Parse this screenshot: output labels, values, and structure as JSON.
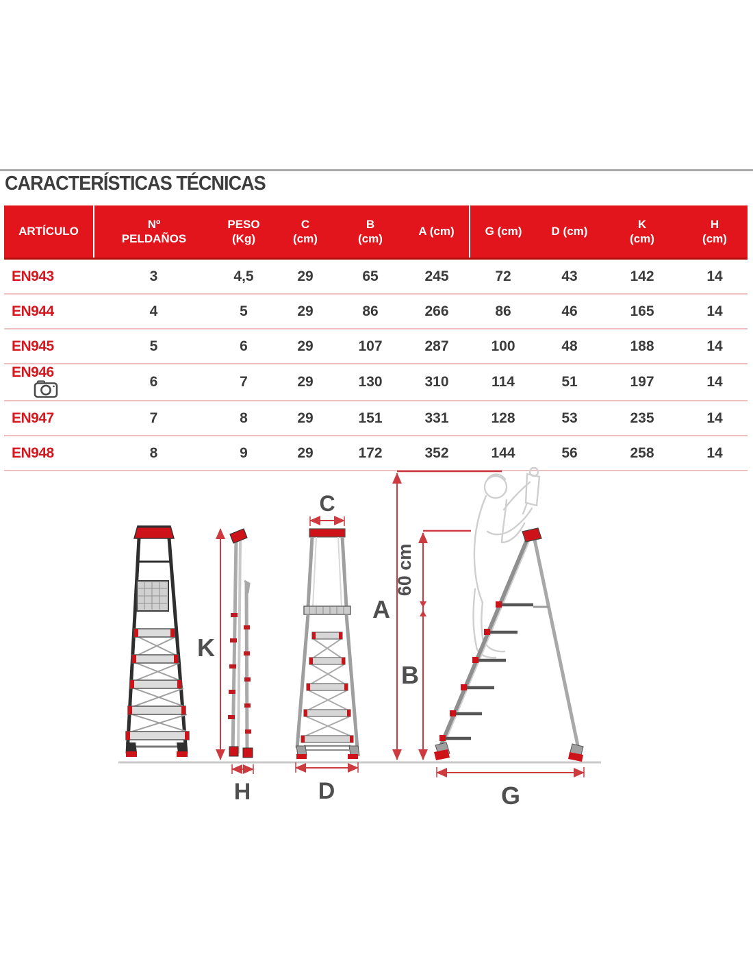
{
  "page": {
    "title": "CARACTERÍSTICAS TÉCNICAS"
  },
  "colors": {
    "header_red": "#e2141c",
    "article_red": "#d5161d",
    "dimension_red": "#cd3a3f",
    "row_separator_pink": "#edbfbf",
    "ladder_accent_red": "#ce1219"
  },
  "table": {
    "columns": [
      {
        "key": "articulo",
        "label": "ARTÍCULO"
      },
      {
        "key": "peldanos",
        "label": "Nº\nPELDAÑOS"
      },
      {
        "key": "peso",
        "label": "PESO\n(Kg)"
      },
      {
        "key": "c",
        "label": "C\n(cm)"
      },
      {
        "key": "b",
        "label": "B\n(cm)"
      },
      {
        "key": "a",
        "label": "A (cm)"
      },
      {
        "key": "g",
        "label": "G (cm)"
      },
      {
        "key": "d",
        "label": "D (cm)"
      },
      {
        "key": "k",
        "label": "K\n(cm)"
      },
      {
        "key": "h",
        "label": "H\n(cm)"
      }
    ],
    "rows": [
      {
        "articulo": "EN943",
        "camera": false,
        "peldanos": "3",
        "peso": "4,5",
        "c": "29",
        "b": "65",
        "a": "245",
        "g": "72",
        "d": "43",
        "k": "142",
        "h": "14"
      },
      {
        "articulo": "EN944",
        "camera": false,
        "peldanos": "4",
        "peso": "5",
        "c": "29",
        "b": "86",
        "a": "266",
        "g": "86",
        "d": "46",
        "k": "165",
        "h": "14"
      },
      {
        "articulo": "EN945",
        "camera": false,
        "peldanos": "5",
        "peso": "6",
        "c": "29",
        "b": "107",
        "a": "287",
        "g": "100",
        "d": "48",
        "k": "188",
        "h": "14"
      },
      {
        "articulo": "EN946",
        "camera": true,
        "peldanos": "6",
        "peso": "7",
        "c": "29",
        "b": "130",
        "a": "310",
        "g": "114",
        "d": "51",
        "k": "197",
        "h": "14"
      },
      {
        "articulo": "EN947",
        "camera": false,
        "peldanos": "7",
        "peso": "8",
        "c": "29",
        "b": "151",
        "a": "331",
        "g": "128",
        "d": "53",
        "k": "235",
        "h": "14"
      },
      {
        "articulo": "EN948",
        "camera": false,
        "peldanos": "8",
        "peso": "9",
        "c": "29",
        "b": "172",
        "a": "352",
        "g": "144",
        "d": "56",
        "k": "258",
        "h": "14"
      }
    ]
  },
  "diagram": {
    "labels": {
      "c": "C",
      "k": "K",
      "h": "H",
      "d": "D",
      "a": "A",
      "b": "B",
      "g": "G",
      "sixty": "60 cm"
    }
  }
}
